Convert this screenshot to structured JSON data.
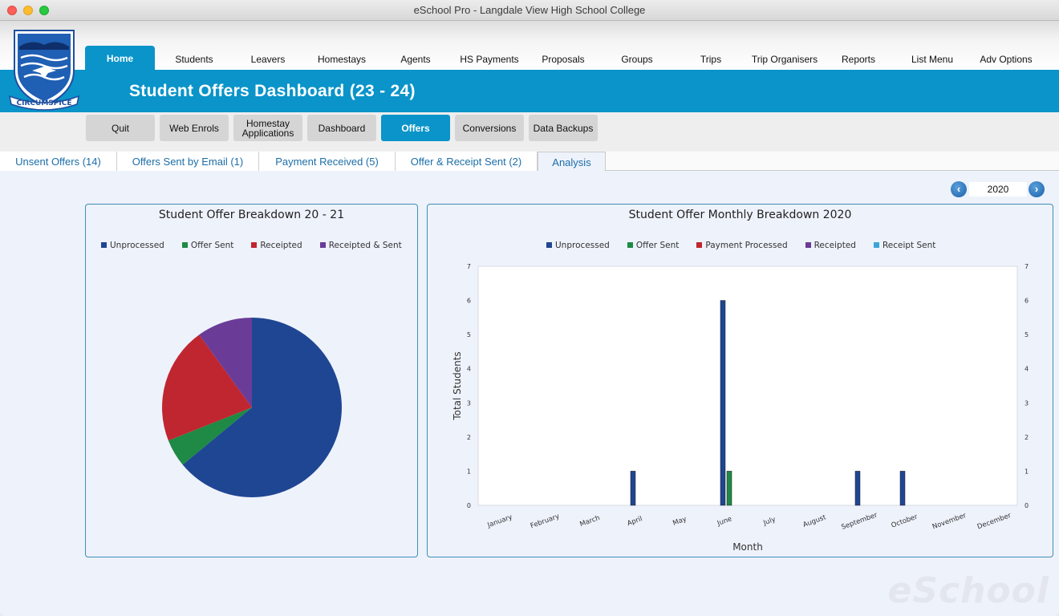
{
  "window": {
    "title": "eSchool Pro - Langdale View High School College"
  },
  "crest": {
    "motto": "CIRCUMSPICE"
  },
  "menu": [
    "Home",
    "Students",
    "Leavers",
    "Homestays",
    "Agents",
    "HS Payments",
    "Proposals",
    "Groups",
    "Trips",
    "Trip Organisers",
    "Reports",
    "List Menu",
    "Adv Options"
  ],
  "page_title": "Student Offers Dashboard (23 - 24)",
  "subnav": [
    "Quit",
    "Web Enrols",
    "Homestay Applications",
    "Dashboard",
    "Offers",
    "Conversions",
    "Data Backups"
  ],
  "tabs": [
    "Unsent Offers (14)",
    "Offers Sent by Email (1)",
    "Payment Received  (5)",
    "Offer & Receipt Sent (2)",
    "Analysis"
  ],
  "year_nav": {
    "prev_icon": "chevron-left-icon",
    "next_icon": "chevron-right-icon",
    "value": "2020"
  },
  "colors": {
    "accent": "#0a94c9",
    "unprocessed": "#1f4693",
    "offer_sent": "#1e8a45",
    "payment_processed": "#c0262f",
    "receipted": "#6a3c98",
    "receipt_sent": "#3ba6d6"
  },
  "watermark": "eSchool",
  "chart_data": [
    {
      "type": "pie",
      "title": "Student Offer Breakdown 20 - 21",
      "labels": [
        "Unprocessed",
        "Offer Sent",
        "Receipted",
        "Receipted & Sent"
      ],
      "colors": [
        "#1f4693",
        "#1e8a45",
        "#c0262f",
        "#6a3c98"
      ],
      "values": [
        64,
        5,
        21,
        10
      ],
      "legend": "top"
    },
    {
      "type": "bar",
      "title": "Student Offer Monthly Breakdown 2020",
      "xlabel": "Month",
      "ylabel": "Total Students",
      "ylim": [
        0,
        7
      ],
      "yticks": [
        0,
        1,
        2,
        3,
        4,
        5,
        6,
        7
      ],
      "legend": "top",
      "categories": [
        "January",
        "February",
        "March",
        "April",
        "May",
        "June",
        "July",
        "August",
        "September",
        "October",
        "November",
        "December"
      ],
      "series": [
        {
          "name": "Unprocessed",
          "color": "#1f4693",
          "values": [
            0,
            0,
            0,
            1,
            0,
            6,
            0,
            0,
            1,
            1,
            0,
            0
          ]
        },
        {
          "name": "Offer Sent",
          "color": "#1e8a45",
          "values": [
            0,
            0,
            0,
            0,
            0,
            1,
            0,
            0,
            0,
            0,
            0,
            0
          ]
        },
        {
          "name": "Payment Processed",
          "color": "#c0262f",
          "values": [
            0,
            0,
            0,
            0,
            0,
            0,
            0,
            0,
            0,
            0,
            0,
            0
          ]
        },
        {
          "name": "Receipted",
          "color": "#6a3c98",
          "values": [
            0,
            0,
            0,
            0,
            0,
            0,
            0,
            0,
            0,
            0,
            0,
            0
          ]
        },
        {
          "name": "Receipt Sent",
          "color": "#3ba6d6",
          "values": [
            0,
            0,
            0,
            0,
            0,
            0,
            0,
            0,
            0,
            0,
            0,
            0
          ]
        }
      ]
    }
  ]
}
